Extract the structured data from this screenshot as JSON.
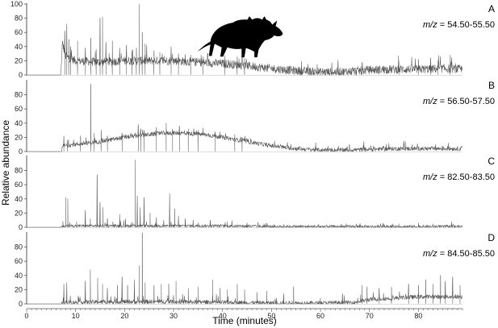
{
  "chart_data": {
    "type": "line",
    "xlabel": "Time (minutes)",
    "ylabel": "Relative abundance",
    "xlim": [
      0,
      89
    ],
    "xticks": [
      0,
      10,
      20,
      30,
      40,
      50,
      60,
      70,
      80
    ],
    "yticks": [
      0,
      20,
      40,
      60,
      80,
      100
    ],
    "ylim": [
      0,
      100
    ],
    "line_color": "#555555",
    "silhouette": "ceratopsian-dinosaur-silhouette",
    "panels": [
      {
        "letter": "A",
        "mz_prefix": "m/z",
        "mz_range": " = 54.50-55.50",
        "start_time": 7.0,
        "baseline": [
          [
            7.0,
            0
          ],
          [
            7.3,
            45
          ],
          [
            8,
            26
          ],
          [
            10,
            20
          ],
          [
            15,
            18
          ],
          [
            20,
            20
          ],
          [
            25,
            20
          ],
          [
            30,
            20
          ],
          [
            35,
            18
          ],
          [
            40,
            16
          ],
          [
            45,
            13
          ],
          [
            50,
            9
          ],
          [
            55,
            6
          ],
          [
            60,
            4
          ],
          [
            63,
            4
          ],
          [
            66,
            5
          ],
          [
            70,
            7
          ],
          [
            75,
            8
          ],
          [
            80,
            8
          ],
          [
            85,
            9
          ],
          [
            89,
            8
          ]
        ],
        "noise": 6,
        "peaks": [
          [
            7.8,
            62
          ],
          [
            8.2,
            72
          ],
          [
            8.6,
            50
          ],
          [
            9.0,
            40
          ],
          [
            10.4,
            48
          ],
          [
            12.0,
            38
          ],
          [
            13.1,
            52
          ],
          [
            14.2,
            36
          ],
          [
            15.0,
            80
          ],
          [
            15.5,
            82
          ],
          [
            16.2,
            46
          ],
          [
            17.5,
            48
          ],
          [
            19.0,
            38
          ],
          [
            20.4,
            42
          ],
          [
            21.5,
            34
          ],
          [
            22.4,
            38
          ],
          [
            23.0,
            100
          ],
          [
            23.6,
            60
          ],
          [
            24.2,
            44
          ],
          [
            26.0,
            34
          ],
          [
            27.2,
            32
          ],
          [
            29.5,
            40
          ],
          [
            31.0,
            30
          ],
          [
            33.5,
            28
          ],
          [
            36.0,
            26
          ],
          [
            40.5,
            27
          ],
          [
            43.0,
            26
          ],
          [
            44.5,
            24
          ],
          [
            68.5,
            18
          ],
          [
            76.0,
            20
          ],
          [
            80.0,
            22
          ],
          [
            82.5,
            24
          ],
          [
            84.0,
            20
          ],
          [
            86.5,
            28
          ]
        ]
      },
      {
        "letter": "B",
        "mz_prefix": "m/z",
        "mz_range": " = 56.50-57.50",
        "start_time": 7.0,
        "baseline": [
          [
            7.0,
            0
          ],
          [
            7.5,
            8
          ],
          [
            10,
            10
          ],
          [
            15,
            14
          ],
          [
            20,
            20
          ],
          [
            25,
            24
          ],
          [
            28,
            26
          ],
          [
            32,
            26
          ],
          [
            36,
            24
          ],
          [
            40,
            20
          ],
          [
            45,
            14
          ],
          [
            50,
            8
          ],
          [
            55,
            4
          ],
          [
            60,
            2
          ],
          [
            65,
            2
          ],
          [
            70,
            3
          ],
          [
            75,
            4
          ],
          [
            80,
            4
          ],
          [
            85,
            4
          ],
          [
            89,
            4
          ]
        ],
        "noise": 3,
        "peaks": [
          [
            7.6,
            22
          ],
          [
            8.3,
            16
          ],
          [
            11.0,
            22
          ],
          [
            13.1,
            95
          ],
          [
            13.8,
            26
          ],
          [
            15.2,
            30
          ],
          [
            16.5,
            22
          ],
          [
            19.5,
            26
          ],
          [
            22.8,
            38
          ],
          [
            23.3,
            32
          ],
          [
            24.0,
            30
          ],
          [
            26.5,
            34
          ],
          [
            28.5,
            40
          ],
          [
            29.8,
            32
          ],
          [
            31.2,
            36
          ],
          [
            33.0,
            32
          ],
          [
            35.0,
            30
          ],
          [
            38.5,
            28
          ],
          [
            42.5,
            24
          ],
          [
            44.0,
            20
          ]
        ]
      },
      {
        "letter": "C",
        "mz_prefix": "m/z",
        "mz_range": " = 82.50-83.50",
        "start_time": 7.0,
        "baseline": [
          [
            7.0,
            0
          ],
          [
            8,
            2
          ],
          [
            20,
            2
          ],
          [
            30,
            2
          ],
          [
            40,
            2
          ],
          [
            50,
            1
          ],
          [
            60,
            1
          ],
          [
            70,
            1
          ],
          [
            80,
            1
          ],
          [
            89,
            1
          ]
        ],
        "noise": 2,
        "peaks": [
          [
            7.4,
            8
          ],
          [
            8.0,
            42
          ],
          [
            8.4,
            40
          ],
          [
            10.2,
            8
          ],
          [
            12.0,
            24
          ],
          [
            13.0,
            12
          ],
          [
            14.4,
            74
          ],
          [
            15.0,
            35
          ],
          [
            15.6,
            28
          ],
          [
            16.5,
            12
          ],
          [
            19.0,
            18
          ],
          [
            20.2,
            12
          ],
          [
            22.2,
            95
          ],
          [
            22.6,
            44
          ],
          [
            23.2,
            28
          ],
          [
            24.0,
            42
          ],
          [
            25.2,
            20
          ],
          [
            26.5,
            14
          ],
          [
            28.0,
            10
          ],
          [
            29.2,
            48
          ],
          [
            30.2,
            26
          ],
          [
            31.0,
            16
          ],
          [
            32.4,
            12
          ],
          [
            34.0,
            10
          ],
          [
            37.5,
            10
          ],
          [
            41.0,
            8
          ],
          [
            45.0,
            6
          ],
          [
            50.5,
            4
          ],
          [
            68.0,
            4
          ],
          [
            73.0,
            4
          ],
          [
            76.0,
            5
          ],
          [
            80.0,
            6
          ],
          [
            83.0,
            5
          ]
        ]
      },
      {
        "letter": "D",
        "mz_prefix": "m/z",
        "mz_range": " = 84.50-85.50",
        "start_time": 7.0,
        "baseline": [
          [
            7.0,
            0
          ],
          [
            8,
            2
          ],
          [
            20,
            3
          ],
          [
            30,
            3
          ],
          [
            40,
            2
          ],
          [
            50,
            1
          ],
          [
            60,
            1
          ],
          [
            67,
            2
          ],
          [
            70,
            6
          ],
          [
            75,
            8
          ],
          [
            80,
            10
          ],
          [
            85,
            10
          ],
          [
            89,
            10
          ]
        ],
        "noise": 3,
        "peaks": [
          [
            7.6,
            28
          ],
          [
            8.2,
            30
          ],
          [
            12.0,
            32
          ],
          [
            13.0,
            48
          ],
          [
            14.5,
            36
          ],
          [
            15.5,
            28
          ],
          [
            16.5,
            22
          ],
          [
            18.5,
            26
          ],
          [
            19.5,
            38
          ],
          [
            20.6,
            26
          ],
          [
            22.0,
            34
          ],
          [
            23.0,
            54
          ],
          [
            23.6,
            100
          ],
          [
            24.2,
            30
          ],
          [
            26.0,
            26
          ],
          [
            27.5,
            28
          ],
          [
            29.0,
            28
          ],
          [
            30.5,
            32
          ],
          [
            33.0,
            22
          ],
          [
            35.0,
            24
          ],
          [
            38.0,
            34
          ],
          [
            39.5,
            22
          ],
          [
            41.0,
            20
          ],
          [
            43.0,
            28
          ],
          [
            44.5,
            20
          ],
          [
            47.0,
            16
          ],
          [
            49.0,
            18
          ],
          [
            52.5,
            14
          ],
          [
            54.5,
            24
          ],
          [
            64.5,
            14
          ],
          [
            68.5,
            26
          ],
          [
            69.5,
            24
          ],
          [
            72.0,
            22
          ],
          [
            74.5,
            24
          ],
          [
            78.0,
            28
          ],
          [
            80.0,
            26
          ],
          [
            81.5,
            34
          ],
          [
            83.0,
            28
          ],
          [
            84.5,
            40
          ],
          [
            85.5,
            32
          ],
          [
            87.0,
            38
          ],
          [
            88.5,
            26
          ]
        ]
      }
    ]
  }
}
